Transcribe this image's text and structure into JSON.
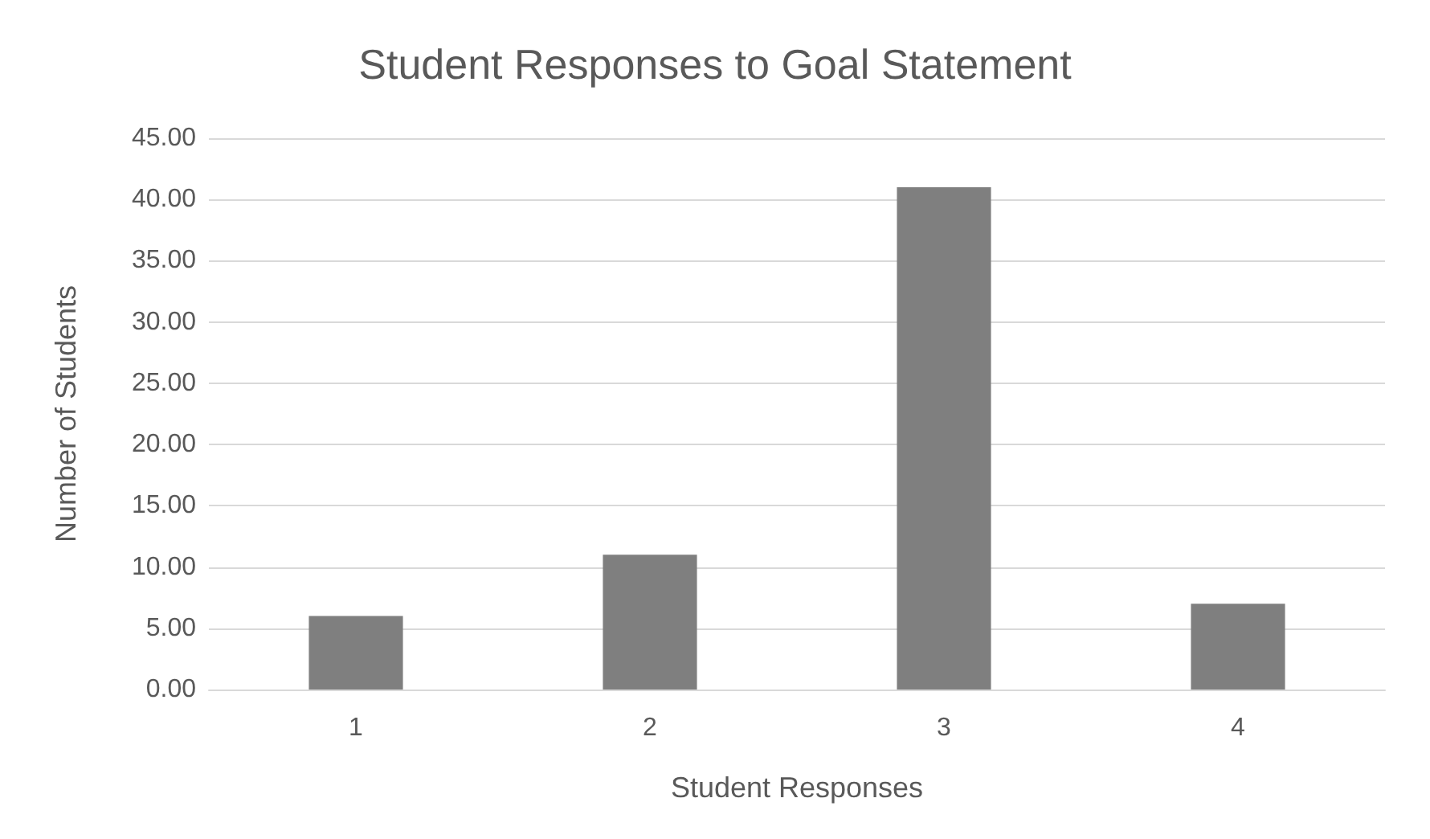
{
  "chart_data": {
    "type": "bar",
    "title": "Student Responses to Goal Statement",
    "xlabel": "Student Responses",
    "ylabel": "Number of Students",
    "categories": [
      "1",
      "2",
      "3",
      "4"
    ],
    "values": [
      6,
      11,
      41,
      7
    ],
    "color": "#7f7f7f",
    "ylim": [
      0,
      45
    ],
    "yticks": [
      {
        "value": 0,
        "label": "0.00"
      },
      {
        "value": 5,
        "label": "5.00"
      },
      {
        "value": 10,
        "label": "10.00"
      },
      {
        "value": 15,
        "label": "15.00"
      },
      {
        "value": 20,
        "label": "20.00"
      },
      {
        "value": 25,
        "label": "25.00"
      },
      {
        "value": 30,
        "label": "30.00"
      },
      {
        "value": 35,
        "label": "35.00"
      },
      {
        "value": 40,
        "label": "40.00"
      },
      {
        "value": 45,
        "label": "45.00"
      }
    ],
    "grid": "y"
  }
}
